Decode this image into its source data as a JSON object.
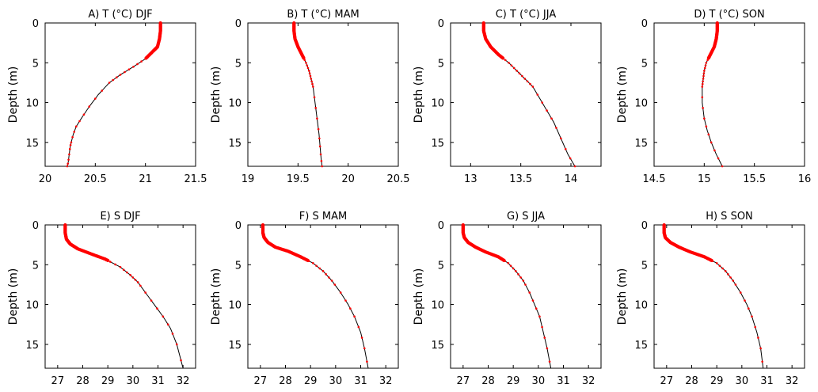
{
  "chart_data": [
    {
      "type": "line",
      "title": "A) T (°C) DJF",
      "ylabel": "Depth (m)",
      "xlim": [
        20,
        21.5
      ],
      "ylim": [
        0,
        18
      ],
      "xticks": [
        "20",
        "20.5",
        "21",
        "21.5"
      ],
      "yticks": [
        "0",
        "5",
        "10",
        "15"
      ],
      "series": [
        {
          "x": [
            21.15,
            21.15,
            21.14,
            21.12,
            21.08,
            21.0,
            20.88,
            20.75,
            20.64,
            20.53,
            20.44,
            20.36,
            20.31,
            20.28,
            20.26,
            20.25,
            20.24,
            20.23,
            20.22
          ],
          "y": [
            0,
            1,
            2,
            3,
            3.5,
            4.5,
            5.5,
            6.5,
            7.5,
            9,
            10.5,
            12,
            13,
            14,
            15,
            15.5,
            16.5,
            17.5,
            18
          ]
        }
      ]
    },
    {
      "type": "line",
      "title": "B) T (°C) MAM",
      "ylabel": "Depth (m)",
      "xlim": [
        19,
        20.5
      ],
      "ylim": [
        0,
        18
      ],
      "xticks": [
        "19",
        "19.5",
        "20",
        "20.5"
      ],
      "yticks": [
        "0",
        "5",
        "10",
        "15"
      ],
      "series": [
        {
          "x": [
            19.46,
            19.46,
            19.47,
            19.5,
            19.54,
            19.58,
            19.61,
            19.63,
            19.65,
            19.67,
            19.69,
            19.71,
            19.72,
            19.73,
            19.74
          ],
          "y": [
            0,
            1,
            2,
            3,
            4,
            5,
            6,
            7,
            8,
            10,
            12,
            14,
            15.5,
            17,
            18
          ]
        }
      ]
    },
    {
      "type": "line",
      "title": "C) T (°C) JJA",
      "ylabel": "Depth (m)",
      "xlim": [
        12.8,
        14.3
      ],
      "ylim": [
        0,
        18
      ],
      "xticks": [
        "13",
        "13.5",
        "14"
      ],
      "yticks": [
        "0",
        "5",
        "10",
        "15"
      ],
      "series": [
        {
          "x": [
            13.13,
            13.13,
            13.15,
            13.2,
            13.28,
            13.38,
            13.46,
            13.54,
            13.62,
            13.69,
            13.76,
            13.83,
            13.9,
            13.97,
            14.04
          ],
          "y": [
            0,
            1,
            2,
            3,
            4,
            5,
            6,
            7,
            8,
            9.5,
            11,
            12.5,
            14.5,
            16.5,
            18
          ]
        }
      ]
    },
    {
      "type": "line",
      "title": "D) T (°C) SON",
      "ylabel": "Depth (m)",
      "xlim": [
        14.5,
        16
      ],
      "ylim": [
        0,
        18
      ],
      "xticks": [
        "14.5",
        "15",
        "15.5",
        "16"
      ],
      "yticks": [
        "0",
        "5",
        "10",
        "15"
      ],
      "series": [
        {
          "x": [
            15.13,
            15.13,
            15.12,
            15.1,
            15.06,
            15.02,
            15.0,
            14.99,
            14.98,
            14.98,
            15.0,
            15.03,
            15.07,
            15.12,
            15.18
          ],
          "y": [
            0,
            1,
            2,
            3,
            4,
            5,
            6,
            7,
            8,
            10,
            12,
            13.5,
            15,
            16.5,
            18
          ]
        }
      ]
    },
    {
      "type": "line",
      "title": "E) S DJF",
      "ylabel": "Depth (m)",
      "xlim": [
        26.5,
        32.5
      ],
      "ylim": [
        0,
        18
      ],
      "xticks": [
        "27",
        "28",
        "29",
        "30",
        "31",
        "32"
      ],
      "yticks": [
        "0",
        "5",
        "10",
        "15"
      ],
      "series": [
        {
          "x": [
            27.3,
            27.3,
            27.35,
            27.5,
            27.8,
            28.3,
            28.9,
            29.5,
            29.9,
            30.2,
            30.5,
            30.85,
            31.2,
            31.5,
            31.75,
            32.0
          ],
          "y": [
            0,
            1,
            1.8,
            2.4,
            3,
            3.6,
            4.3,
            5.3,
            6.3,
            7.2,
            8.5,
            10,
            11.5,
            13,
            15,
            18
          ]
        }
      ]
    },
    {
      "type": "line",
      "title": "F) S MAM",
      "ylabel": "Depth (m)",
      "xlim": [
        26.5,
        32.5
      ],
      "ylim": [
        0,
        18
      ],
      "xticks": [
        "27",
        "28",
        "29",
        "30",
        "31",
        "32"
      ],
      "yticks": [
        "0",
        "5",
        "10",
        "15"
      ],
      "series": [
        {
          "x": [
            27.1,
            27.1,
            27.15,
            27.3,
            27.6,
            28.1,
            28.6,
            29.1,
            29.5,
            29.85,
            30.2,
            30.5,
            30.75,
            31.0,
            31.15,
            31.3
          ],
          "y": [
            0,
            1,
            1.6,
            2.2,
            2.8,
            3.3,
            4,
            4.8,
            5.8,
            7,
            8.5,
            10,
            11.5,
            13.5,
            15.5,
            18
          ]
        }
      ]
    },
    {
      "type": "line",
      "title": "G) S JJA",
      "ylabel": "Depth (m)",
      "xlim": [
        26.5,
        32.5
      ],
      "ylim": [
        0,
        18
      ],
      "xticks": [
        "27",
        "28",
        "29",
        "30",
        "31",
        "32"
      ],
      "yticks": [
        "0",
        "5",
        "10",
        "15"
      ],
      "series": [
        {
          "x": [
            27.0,
            27.0,
            27.05,
            27.2,
            27.5,
            27.9,
            28.4,
            28.8,
            29.1,
            29.4,
            29.65,
            29.85,
            30.05,
            30.2,
            30.35,
            30.5
          ],
          "y": [
            0,
            1,
            1.6,
            2.2,
            2.8,
            3.4,
            4,
            4.8,
            5.8,
            7,
            8.5,
            10,
            11.5,
            13.5,
            15.5,
            18
          ]
        }
      ]
    },
    {
      "type": "line",
      "title": "H) S SON",
      "ylabel": "Depth (m)",
      "xlim": [
        26.5,
        32.5
      ],
      "ylim": [
        0,
        18
      ],
      "xticks": [
        "27",
        "28",
        "29",
        "30",
        "31",
        "32"
      ],
      "yticks": [
        "0",
        "5",
        "10",
        "15"
      ],
      "series": [
        {
          "x": [
            26.9,
            26.9,
            26.95,
            27.15,
            27.5,
            27.95,
            28.5,
            29.0,
            29.35,
            29.65,
            29.95,
            30.2,
            30.4,
            30.6,
            30.75,
            30.85
          ],
          "y": [
            0,
            1,
            1.6,
            2.2,
            2.8,
            3.4,
            4,
            4.8,
            5.8,
            7,
            8.5,
            10,
            11.5,
            13.5,
            15.5,
            18
          ]
        }
      ]
    }
  ],
  "colors": {
    "marker": "#ff0000",
    "line": "#000000",
    "axis": "#000000"
  }
}
